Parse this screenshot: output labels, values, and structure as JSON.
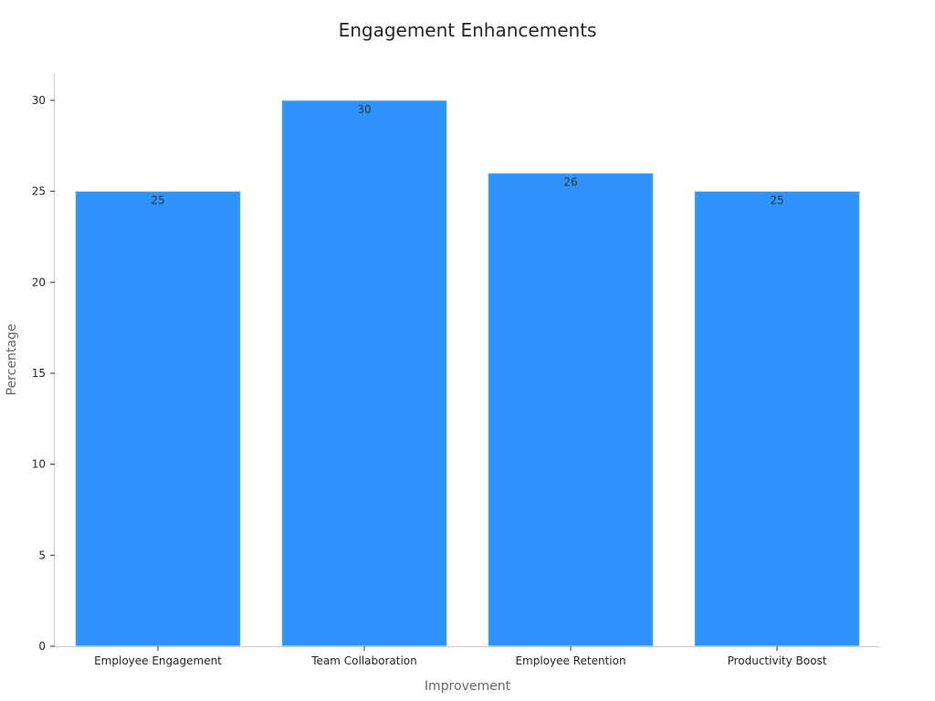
{
  "chart_data": {
    "type": "bar",
    "title": "Engagement Enhancements",
    "xlabel": "Improvement",
    "ylabel": "Percentage",
    "categories": [
      "Employee Engagement",
      "Team Collaboration",
      "Employee Retention",
      "Productivity Boost"
    ],
    "values": [
      25,
      30,
      26,
      25
    ],
    "data_labels": [
      "25",
      "30",
      "26",
      "25"
    ],
    "ylim": [
      0,
      31.5
    ],
    "yticks": [
      0,
      5,
      10,
      15,
      20,
      25,
      30
    ],
    "grid": false,
    "legend": "none",
    "bar_color": "#2e93fa",
    "bar_edge_color": "#dde8f5"
  }
}
